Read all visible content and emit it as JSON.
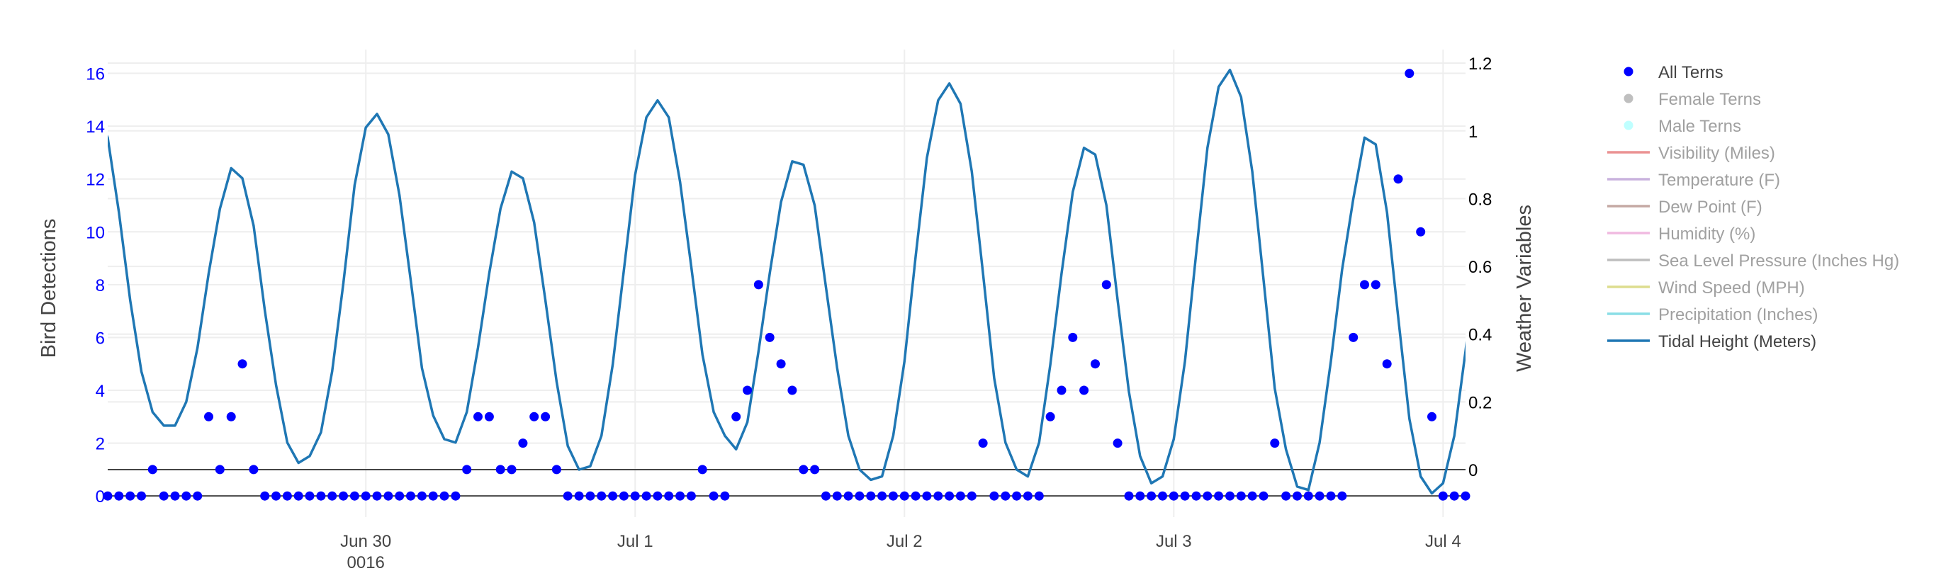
{
  "chart_data": {
    "type": "scatter+line",
    "title": "",
    "x_ticks": [
      {
        "label": "Jun 30",
        "sublabel": "0016",
        "value": "2016-06-30"
      },
      {
        "label": "Jul 1",
        "sublabel": "",
        "value": "2016-07-01"
      },
      {
        "label": "Jul 2",
        "sublabel": "",
        "value": "2016-07-02"
      },
      {
        "label": "Jul 3",
        "sublabel": "",
        "value": "2016-07-03"
      },
      {
        "label": "Jul 4",
        "sublabel": "",
        "value": "2016-07-04"
      }
    ],
    "xlim": [
      "2016-06-29T01:00",
      "2016-07-04T02:00"
    ],
    "y_left": {
      "label": "Bird Detections",
      "range": [
        -0.8,
        16.9
      ],
      "ticks": [
        0,
        2,
        4,
        6,
        8,
        10,
        12,
        14,
        16
      ],
      "color": "#0000ff"
    },
    "y_right": {
      "label": "Weather Variables",
      "range": [
        -0.14,
        1.24
      ],
      "ticks": [
        0,
        0.2,
        0.4,
        0.6,
        0.8,
        1,
        1.2
      ],
      "tick_labels": [
        "0",
        "0.2",
        "0.4",
        "0.6",
        "0.8",
        "1",
        "1.2"
      ],
      "color": "#000000"
    },
    "grid": true,
    "legend_placement": "right",
    "legend": [
      {
        "name": "All Terns",
        "kind": "marker",
        "color": "#0000ff",
        "active": true
      },
      {
        "name": "Female Terns",
        "kind": "marker",
        "color": "#808080",
        "active": false
      },
      {
        "name": "Male Terns",
        "kind": "marker",
        "color": "#7fffff",
        "active": false
      },
      {
        "name": "Visibility (Miles)",
        "kind": "line",
        "color": "#d62728",
        "active": false
      },
      {
        "name": "Temperature (F)",
        "kind": "line",
        "color": "#9467bd",
        "active": false
      },
      {
        "name": "Dew Point (F)",
        "kind": "line",
        "color": "#8c564b",
        "active": false
      },
      {
        "name": "Humidity (%)",
        "kind": "line",
        "color": "#e377c2",
        "active": false
      },
      {
        "name": "Sea Level Pressure (Inches Hg)",
        "kind": "line",
        "color": "#7f7f7f",
        "active": false
      },
      {
        "name": "Wind Speed (MPH)",
        "kind": "line",
        "color": "#bcbd22",
        "active": false
      },
      {
        "name": "Precipitation (Inches)",
        "kind": "line",
        "color": "#17becf",
        "active": false
      },
      {
        "name": "Tidal Height (Meters)",
        "kind": "line",
        "color": "#1f77b4",
        "active": true
      }
    ],
    "series": [
      {
        "name": "All Terns",
        "axis": "left",
        "type": "scatter",
        "color": "#0000ff",
        "x_start": "2016-06-29T01:00",
        "x_step_hours": 1,
        "values": [
          0,
          0,
          0,
          0,
          1,
          0,
          0,
          0,
          0,
          3,
          1,
          3,
          5,
          1,
          0,
          0,
          0,
          0,
          0,
          0,
          0,
          0,
          0,
          0,
          0,
          0,
          0,
          0,
          0,
          0,
          0,
          0,
          1,
          3,
          3,
          1,
          1,
          2,
          3,
          3,
          1,
          0,
          0,
          0,
          0,
          0,
          0,
          0,
          0,
          0,
          0,
          0,
          0,
          1,
          0,
          0,
          3,
          4,
          8,
          6,
          5,
          4,
          1,
          1,
          0,
          0,
          0,
          0,
          0,
          0,
          0,
          0,
          0,
          0,
          0,
          0,
          0,
          0,
          2,
          0,
          0,
          0,
          0,
          0,
          3,
          4,
          6,
          4,
          5,
          8,
          2,
          0,
          0,
          0,
          0,
          0,
          0,
          0,
          0,
          0,
          0,
          0,
          0,
          0,
          2,
          0,
          0,
          0,
          0,
          0,
          0,
          6,
          8,
          8,
          5,
          12,
          16,
          10,
          3,
          0,
          0,
          0,
          0,
          0,
          0,
          0,
          0,
          0
        ]
      },
      {
        "name": "Tidal Height (Meters)",
        "axis": "right",
        "type": "line",
        "color": "#1f77b4",
        "x_start": "2016-06-29T00:00",
        "x_step_hours": 1,
        "values": [
          1.05,
          0.98,
          0.76,
          0.5,
          0.29,
          0.17,
          0.13,
          0.13,
          0.2,
          0.36,
          0.58,
          0.77,
          0.89,
          0.86,
          0.72,
          0.47,
          0.25,
          0.08,
          0.02,
          0.04,
          0.11,
          0.29,
          0.55,
          0.84,
          1.01,
          1.05,
          0.99,
          0.81,
          0.56,
          0.3,
          0.16,
          0.09,
          0.08,
          0.17,
          0.36,
          0.58,
          0.77,
          0.88,
          0.86,
          0.73,
          0.5,
          0.26,
          0.07,
          0,
          0.01,
          0.1,
          0.31,
          0.59,
          0.87,
          1.04,
          1.09,
          1.04,
          0.85,
          0.6,
          0.34,
          0.17,
          0.1,
          0.06,
          0.14,
          0.35,
          0.58,
          0.79,
          0.91,
          0.9,
          0.78,
          0.54,
          0.3,
          0.1,
          0,
          -0.03,
          -0.02,
          0.1,
          0.32,
          0.63,
          0.92,
          1.09,
          1.14,
          1.08,
          0.88,
          0.58,
          0.27,
          0.08,
          0,
          -0.02,
          0.08,
          0.31,
          0.58,
          0.82,
          0.95,
          0.93,
          0.78,
          0.5,
          0.23,
          0.04,
          -0.04,
          -0.02,
          0.09,
          0.32,
          0.64,
          0.95,
          1.13,
          1.18,
          1.1,
          0.88,
          0.56,
          0.24,
          0.06,
          -0.05,
          -0.06,
          0.08,
          0.32,
          0.59,
          0.8,
          0.98,
          0.96,
          0.76,
          0.45,
          0.15,
          -0.02,
          -0.07,
          -0.04,
          0.1,
          0.35,
          0.62
        ]
      }
    ]
  }
}
